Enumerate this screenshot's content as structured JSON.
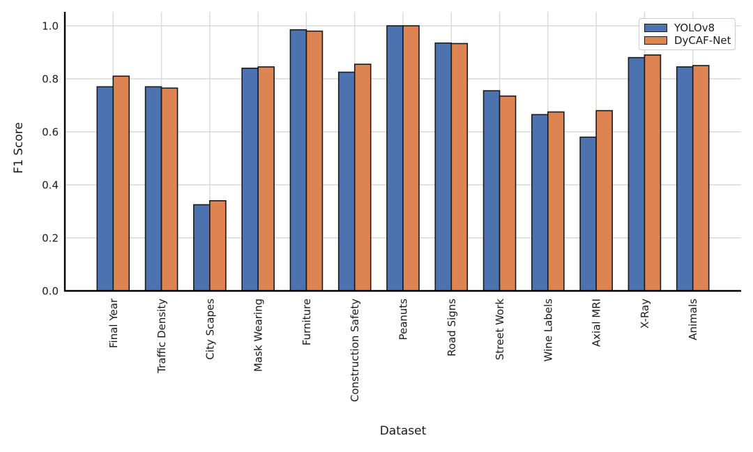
{
  "figure": {
    "background": "#ffffff"
  },
  "axes": {
    "xlabel": "Dataset",
    "ylabel": "F1 Score"
  },
  "chart_data": {
    "type": "bar",
    "title": "",
    "xlabel": "Dataset",
    "ylabel": "F1 Score",
    "categories": [
      "Final Year",
      "Traffic Density",
      "City Scapes",
      "Mask Wearing",
      "Furniture",
      "Construction Safety",
      "Peanuts",
      "Road Signs",
      "Street Work",
      "Wine Labels",
      "Axial MRI",
      "X-Ray",
      "Animals"
    ],
    "series": [
      {
        "name": "YOLOv8",
        "color": "#4C72B0",
        "values": [
          0.77,
          0.77,
          0.325,
          0.84,
          0.985,
          0.825,
          1.0,
          0.935,
          0.755,
          0.665,
          0.58,
          0.88,
          0.845
        ]
      },
      {
        "name": "DyCAF-Net",
        "color": "#DD8452",
        "values": [
          0.81,
          0.765,
          0.34,
          0.845,
          0.98,
          0.855,
          1.0,
          0.933,
          0.735,
          0.675,
          0.68,
          0.89,
          0.85
        ]
      }
    ],
    "ylim": [
      0,
      1.05
    ],
    "yticks": [
      0.0,
      0.2,
      0.4,
      0.6,
      0.8,
      1.0
    ],
    "ytick_labels": [
      "0.0",
      "0.2",
      "0.4",
      "0.6",
      "0.8",
      "1.0"
    ],
    "grid": true,
    "grid_color": "#d9d9d9",
    "bar_edge_color": "#1a1a1a",
    "legend_position": "upper right"
  }
}
